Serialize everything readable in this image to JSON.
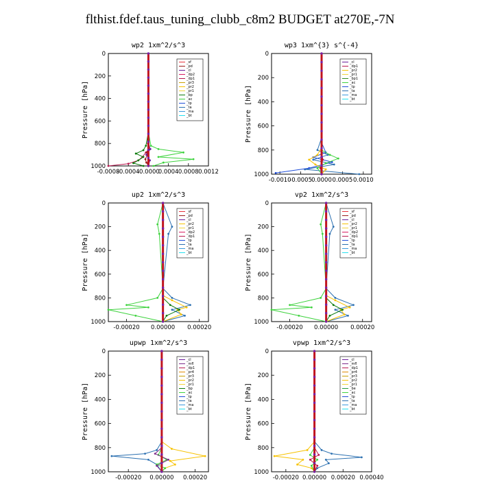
{
  "page_title": "flthist.fdef.taus_tuning_clubb_c8m2  BUDGET at270E,-7N",
  "colors": {
    "sf": "#e8303a",
    "pd": "#9a1a1a",
    "cl": "#6a1b9a",
    "dp1": "#b8174e",
    "dp2": "#d81b60",
    "pr1": "#f2d43a",
    "pr2": "#f7c200",
    "pr3": "#c9a000",
    "pr4": "#e08a00",
    "mfl": "#7b2a8a",
    "bp": "#0a7a0a",
    "bp1": "#2e8b1f",
    "ac": "#3cd23c",
    "tp": "#1e4dd8",
    "ta": "#2a6fb0",
    "ma": "#3a9adf",
    "bt": "#22e0f0",
    "be": "#1f9a3a"
  },
  "chart_data": [
    {
      "type": "line",
      "title": "wp2  1xm^2/s^3",
      "ylabel": "Pressure [hPa]",
      "ylim": [
        1000,
        0
      ],
      "xlim": [
        -0.0008,
        0.0012
      ],
      "yticks": [
        "0",
        "200",
        "400",
        "600",
        "800",
        "1000"
      ],
      "xticks": [
        "-0.0008",
        "-0.0004",
        "-0.0000",
        "0.0004",
        "0.0008",
        "0.0012"
      ],
      "legend": [
        "_sf",
        "_pd",
        "_cl",
        "_dp2",
        "_dp1",
        "_pr3",
        "_pr2",
        "_pr1",
        "_bp",
        "_ac",
        "_tp",
        "_ta",
        "_ma",
        "_bt"
      ],
      "series": [
        {
          "key": "dp1",
          "x": [
            0,
            0,
            -1e-05,
            1e-05,
            -5e-05,
            -0.00012,
            -0.0002,
            -0.0004,
            -0.0008
          ],
          "y": [
            0,
            600,
            800,
            850,
            880,
            920,
            950,
            980,
            1000
          ]
        },
        {
          "key": "ac",
          "x": [
            0,
            0,
            5e-05,
            0.0002,
            0.0007,
            0.0002,
            0.0009,
            0.0003,
            0.0001
          ],
          "y": [
            0,
            700,
            820,
            850,
            880,
            920,
            940,
            970,
            1000
          ]
        },
        {
          "key": "bp",
          "x": [
            0,
            0,
            -5e-05,
            -0.0001,
            -0.00025,
            -0.0001,
            -0.0002,
            -0.0003,
            -0.0001
          ],
          "y": [
            0,
            700,
            820,
            860,
            890,
            920,
            950,
            975,
            1000
          ]
        },
        {
          "key": "pd",
          "x": [
            0,
            0,
            0,
            -3e-05,
            -2e-05,
            -6e-05,
            -4e-05,
            0
          ],
          "y": [
            0,
            800,
            850,
            880,
            900,
            940,
            970,
            1000
          ]
        },
        {
          "key": "cl",
          "x": [
            0,
            0,
            4e-05,
            -4e-05,
            3e-05,
            0
          ],
          "y": [
            0,
            800,
            850,
            900,
            950,
            1000
          ]
        }
      ]
    },
    {
      "type": "line",
      "title": "wp3  1xm^{3} s^{-4}",
      "ylabel": "Pressure [hPa]",
      "ylim": [
        1000,
        0
      ],
      "xlim": [
        -0.0012,
        0.0012
      ],
      "yticks": [
        "0",
        "200",
        "400",
        "600",
        "800",
        "1000"
      ],
      "xticks": [
        "-0.0010",
        "-0.0005",
        "0.0000",
        "0.0005",
        "0.0010"
      ],
      "legend": [
        "_cl",
        "_dp1",
        "_pr2",
        "_pr1",
        "_bp1",
        "_ac",
        "_tp",
        "_ta",
        "_ma",
        "_bt"
      ],
      "series": [
        {
          "key": "ta",
          "x": [
            0,
            0,
            -0.0001,
            0.00015,
            -0.0002,
            0.0003,
            -0.0004,
            0.0009
          ],
          "y": [
            0,
            700,
            800,
            840,
            880,
            920,
            960,
            1000
          ]
        },
        {
          "key": "tp",
          "x": [
            0,
            0,
            0.0001,
            -0.0002,
            0.00025,
            -0.0003,
            -0.0011
          ],
          "y": [
            0,
            740,
            820,
            860,
            900,
            950,
            990
          ]
        },
        {
          "key": "pr2",
          "x": [
            0,
            0,
            -0.0001,
            -0.0003,
            -0.00015,
            0.0001,
            0
          ],
          "y": [
            0,
            780,
            840,
            880,
            920,
            960,
            1000
          ]
        },
        {
          "key": "ac",
          "x": [
            0,
            0,
            0.0002,
            0.0004,
            0.0001,
            -0.0001,
            0
          ],
          "y": [
            0,
            800,
            840,
            870,
            910,
            950,
            1000
          ]
        },
        {
          "key": "dp1",
          "x": [
            0,
            0,
            3e-05,
            -3e-05,
            0
          ],
          "y": [
            0,
            800,
            880,
            950,
            1000
          ]
        }
      ]
    },
    {
      "type": "line",
      "title": "up2  1xm^2/s^3",
      "ylabel": "Pressure [hPa]",
      "ylim": [
        1000,
        0
      ],
      "xlim": [
        -0.0003,
        0.00025
      ],
      "yticks": [
        "0",
        "200",
        "400",
        "600",
        "800",
        "1000"
      ],
      "xticks": [
        "-0.00020",
        "0.00000",
        "0.00020"
      ],
      "legend": [
        "_sf",
        "_pd",
        "_cl",
        "_pr2",
        "_pr1",
        "_dp2",
        "_dp1",
        "_tp",
        "_ta",
        "_ma",
        "_bt"
      ],
      "series": [
        {
          "key": "ac",
          "x": [
            0,
            -3e-05,
            -2e-05,
            0,
            -3e-05,
            -0.0002,
            -8e-05,
            -0.0003,
            -0.00015,
            0
          ],
          "y": [
            0,
            180,
            260,
            720,
            800,
            860,
            880,
            900,
            950,
            1000
          ]
        },
        {
          "key": "ta",
          "x": [
            0,
            5e-05,
            3e-05,
            0,
            5e-05,
            0.00015,
            5e-05,
            0.00012,
            0
          ],
          "y": [
            0,
            200,
            260,
            720,
            800,
            860,
            900,
            950,
            1000
          ]
        },
        {
          "key": "pr2",
          "x": [
            0,
            0,
            5e-05,
            0.00013,
            8e-05,
            0.0001,
            0
          ],
          "y": [
            0,
            780,
            820,
            880,
            900,
            940,
            1000
          ]
        },
        {
          "key": "bp",
          "x": [
            0,
            0,
            4e-05,
            9e-05,
            2e-05,
            0
          ],
          "y": [
            0,
            800,
            860,
            900,
            950,
            1000
          ]
        },
        {
          "key": "sf",
          "x": [
            0,
            0,
            0
          ],
          "y": [
            0,
            500,
            1000
          ]
        }
      ]
    },
    {
      "type": "line",
      "title": "vp2  1xm^2/s^3",
      "ylabel": "Pressure [hPa]",
      "ylim": [
        1000,
        0
      ],
      "xlim": [
        -0.0003,
        0.00025
      ],
      "yticks": [
        "0",
        "200",
        "400",
        "600",
        "800",
        "1000"
      ],
      "xticks": [
        "-0.00020",
        "0.00000",
        "0.00020"
      ],
      "legend": [
        "_sf",
        "_pd",
        "_cl",
        "_pr2",
        "_pr1",
        "_dp2",
        "_dp1",
        "_tp",
        "_ta",
        "_ma",
        "_bt"
      ],
      "series": [
        {
          "key": "ac",
          "x": [
            0,
            -3e-05,
            -2e-05,
            0,
            -3e-05,
            -0.0002,
            -8e-05,
            -0.0003,
            -0.00015,
            0
          ],
          "y": [
            0,
            180,
            260,
            720,
            800,
            860,
            880,
            900,
            950,
            1000
          ]
        },
        {
          "key": "ta",
          "x": [
            0,
            4e-05,
            2e-05,
            0,
            5e-05,
            0.00015,
            5e-05,
            0.00012,
            0
          ],
          "y": [
            0,
            200,
            260,
            720,
            800,
            860,
            900,
            950,
            1000
          ]
        },
        {
          "key": "pr2",
          "x": [
            0,
            0,
            5e-05,
            0.00013,
            8e-05,
            0.0001,
            0
          ],
          "y": [
            0,
            780,
            820,
            880,
            900,
            940,
            1000
          ]
        },
        {
          "key": "bp",
          "x": [
            0,
            0,
            4e-05,
            9e-05,
            2e-05,
            0
          ],
          "y": [
            0,
            800,
            860,
            900,
            950,
            1000
          ]
        },
        {
          "key": "sf",
          "x": [
            0,
            0,
            0
          ],
          "y": [
            0,
            500,
            1000
          ]
        }
      ]
    },
    {
      "type": "line",
      "title": "upwp  1xm^2/s^3",
      "ylabel": "Pressure [hPa]",
      "ylim": [
        1000,
        0
      ],
      "xlim": [
        -0.00032,
        0.00028
      ],
      "yticks": [
        "0",
        "200",
        "400",
        "600",
        "800",
        "1000"
      ],
      "xticks": [
        "-0.00020",
        "0.00000",
        "0.00020"
      ],
      "legend": [
        "_cl",
        "_mfl",
        "_dp1",
        "_pr4",
        "_pr3",
        "_pr2",
        "_pr1",
        "_bp",
        "_ac",
        "_tp",
        "_ta",
        "_ma",
        "_bt"
      ],
      "series": [
        {
          "key": "ta",
          "x": [
            0,
            0,
            -3e-05,
            -0.0001,
            -0.0003,
            -8e-05,
            -3e-05,
            0
          ],
          "y": [
            0,
            750,
            820,
            850,
            870,
            900,
            940,
            1000
          ]
        },
        {
          "key": "pr2",
          "x": [
            0,
            0,
            6e-05,
            0.00026,
            5e-05,
            8e-05,
            2e-05,
            0
          ],
          "y": [
            0,
            750,
            810,
            870,
            910,
            940,
            970,
            1000
          ]
        },
        {
          "key": "ac",
          "x": [
            0,
            0,
            -2e-05,
            3e-05,
            -3e-05,
            2e-05,
            0
          ],
          "y": [
            0,
            800,
            860,
            900,
            940,
            970,
            1000
          ]
        },
        {
          "key": "mfl",
          "x": [
            0,
            0,
            -4e-05,
            4e-05,
            -3e-05,
            0
          ],
          "y": [
            0,
            800,
            850,
            900,
            950,
            1000
          ]
        },
        {
          "key": "cl",
          "x": [
            0,
            0,
            0
          ],
          "y": [
            0,
            500,
            1000
          ]
        }
      ]
    },
    {
      "type": "line",
      "title": "vpwp  1xm^2/s^3",
      "ylabel": "Pressure [hPa]",
      "ylim": [
        1000,
        0
      ],
      "xlim": [
        -0.0003,
        0.0004
      ],
      "yticks": [
        "0",
        "200",
        "400",
        "600",
        "800",
        "1000"
      ],
      "xticks": [
        "-0.00020",
        "0.00000",
        "0.00020",
        "0.00040"
      ],
      "legend": [
        "_cl",
        "_mfl",
        "_dp1",
        "_pr4",
        "_pr3",
        "_pr2",
        "_pr1",
        "_be",
        "_ac",
        "_tp",
        "_ta",
        "_ma",
        "_bt"
      ],
      "series": [
        {
          "key": "ta",
          "x": [
            0,
            0,
            5e-05,
            0.00012,
            0.00033,
            8e-05,
            0.0001,
            2e-05,
            0
          ],
          "y": [
            0,
            750,
            820,
            850,
            880,
            900,
            930,
            970,
            1000
          ]
        },
        {
          "key": "pr2",
          "x": [
            0,
            0,
            -5e-05,
            -0.00028,
            -8e-05,
            -0.00012,
            -2e-05,
            0
          ],
          "y": [
            0,
            750,
            820,
            870,
            900,
            940,
            970,
            1000
          ]
        },
        {
          "key": "ac",
          "x": [
            0,
            0,
            -3e-05,
            2e-05,
            -2e-05,
            0
          ],
          "y": [
            0,
            800,
            860,
            900,
            950,
            1000
          ]
        },
        {
          "key": "dp1",
          "x": [
            0,
            0,
            3e-05,
            -3e-05,
            2e-05,
            0
          ],
          "y": [
            0,
            800,
            860,
            900,
            950,
            1000
          ]
        },
        {
          "key": "cl",
          "x": [
            0,
            0,
            0
          ],
          "y": [
            0,
            500,
            1000
          ]
        }
      ]
    }
  ]
}
